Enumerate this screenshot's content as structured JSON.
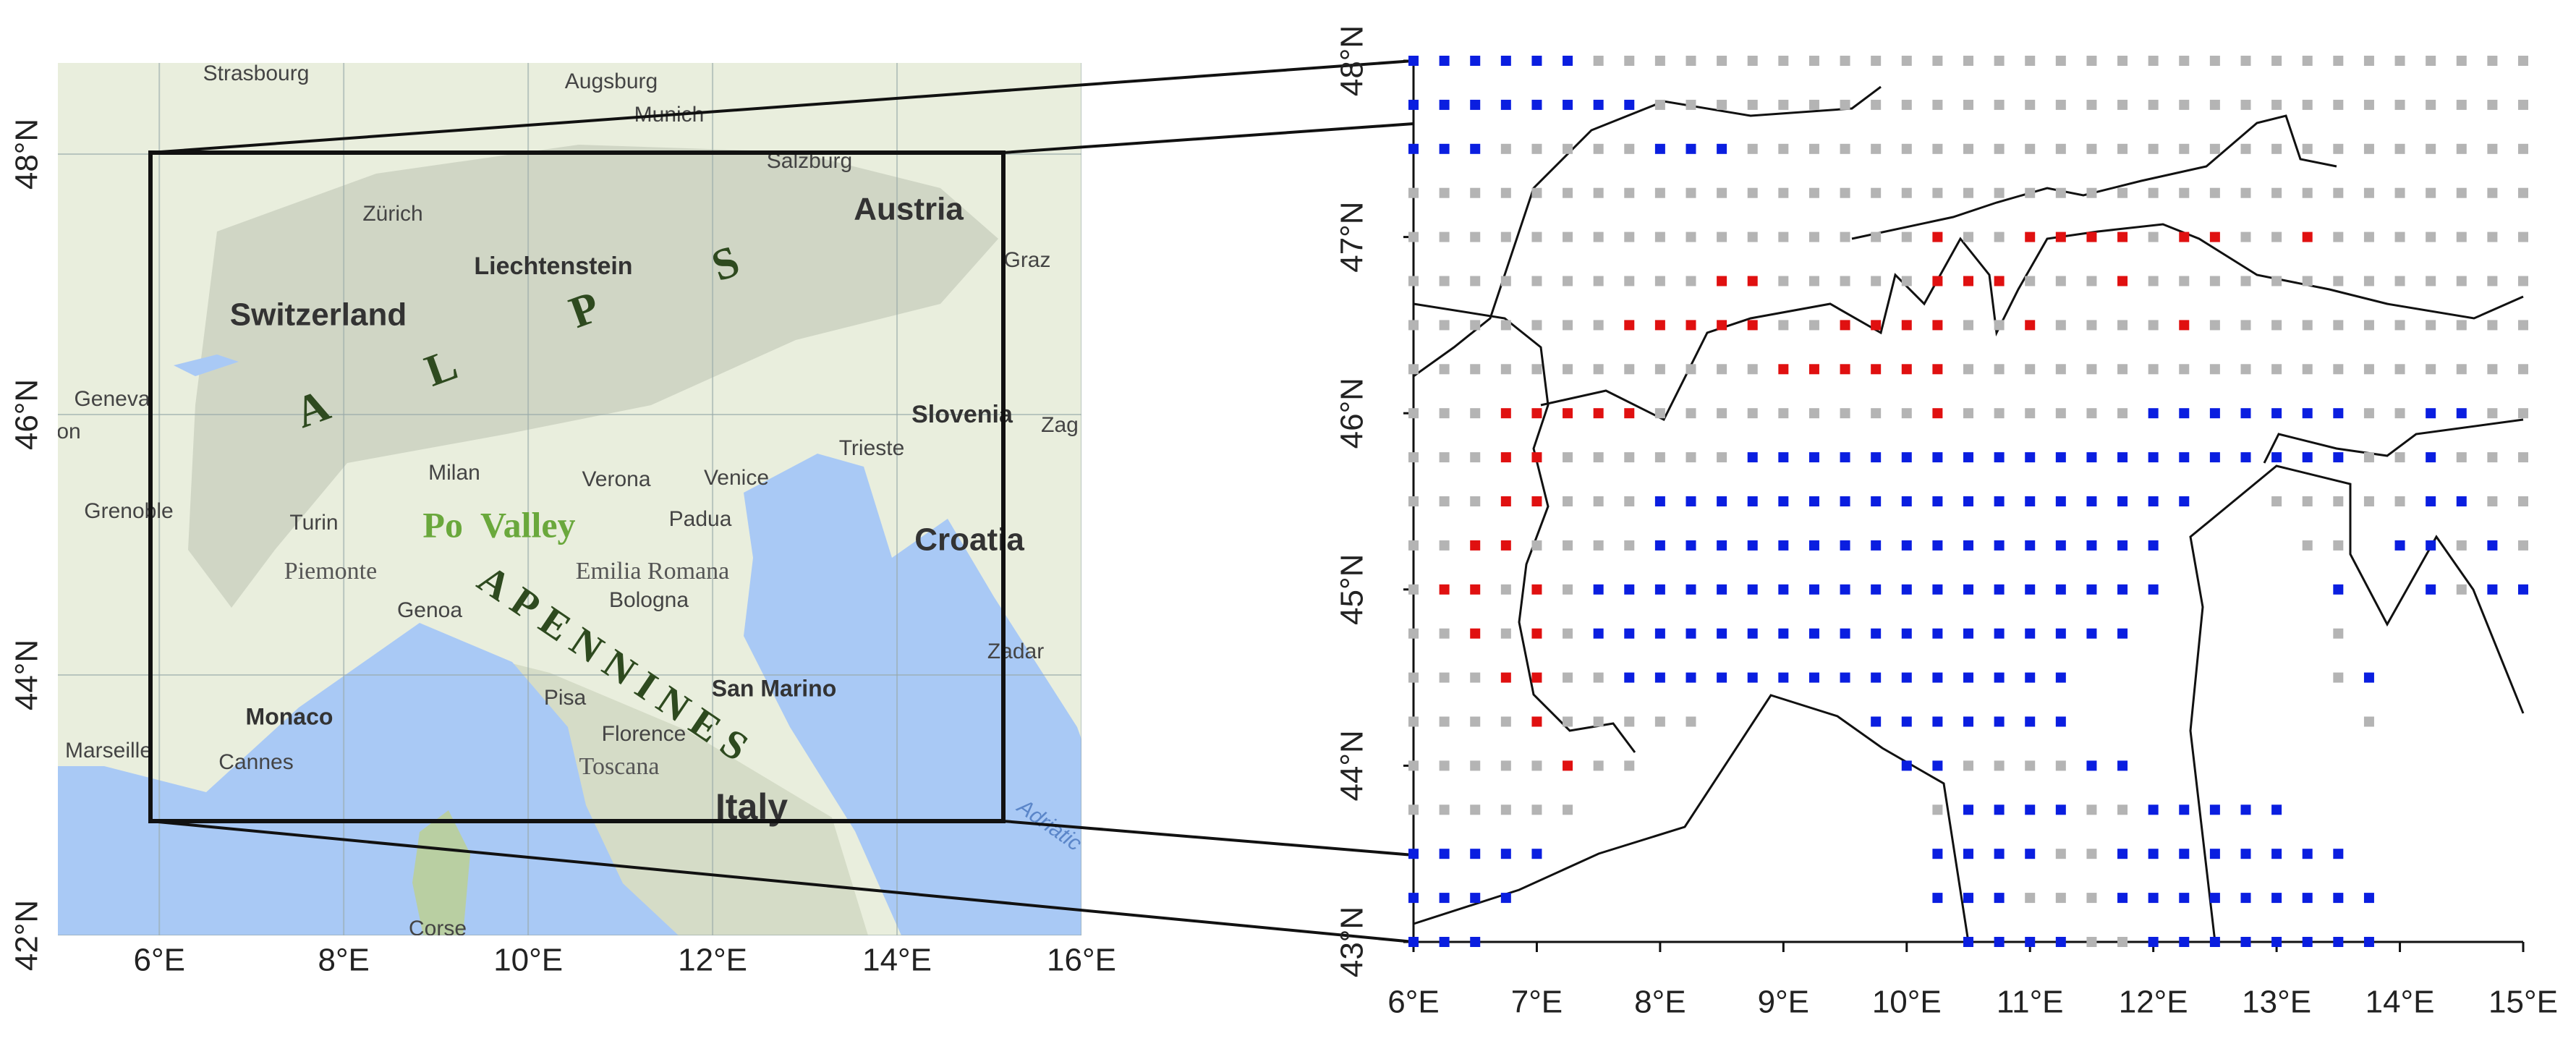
{
  "left_map": {
    "labels": [
      "Strasbourg",
      "Augsburg",
      "Munich",
      "Salzburg",
      "Zürich",
      "Austria",
      "Graz",
      "Liechtenstein",
      "Switzerland",
      "Geneva",
      "on",
      "Slovenia",
      "Zag",
      "Trieste",
      "Milan",
      "Verona",
      "Venice",
      "Padua",
      "Grenoble",
      "Turin",
      "Po  Valley",
      "Croatia",
      "Piemonte",
      "Emilia Romana",
      "Bologna",
      "Genoa",
      "San Marino",
      "Zadar",
      "Monaco",
      "Pisa",
      "Florence",
      "Cannes",
      "Marseille",
      "Toscana",
      "Italy",
      "Corse",
      "Adriatic",
      "A",
      "L",
      "P",
      "S",
      "APENNINES"
    ],
    "xlim": [
      4.9,
      16
    ],
    "ylim": [
      42,
      48.7
    ],
    "xticks": [
      {
        "value": 6,
        "label": "6°E"
      },
      {
        "value": 8,
        "label": "8°E"
      },
      {
        "value": 10,
        "label": "10°E"
      },
      {
        "value": 12,
        "label": "12°E"
      },
      {
        "value": 14,
        "label": "14°E"
      },
      {
        "value": 16,
        "label": "16°E"
      }
    ],
    "yticks": [
      {
        "value": 42,
        "label": "42°N"
      },
      {
        "value": 44,
        "label": "44°N"
      },
      {
        "value": 46,
        "label": "46°N"
      },
      {
        "value": 48,
        "label": "48°N"
      }
    ]
  },
  "right_map": {
    "xlim": [
      6,
      15
    ],
    "ylim": [
      43,
      48
    ],
    "xticks": [
      {
        "value": 6,
        "label": "6°E"
      },
      {
        "value": 7,
        "label": "7°E"
      },
      {
        "value": 8,
        "label": "8°E"
      },
      {
        "value": 9,
        "label": "9°E"
      },
      {
        "value": 10,
        "label": "10°E"
      },
      {
        "value": 11,
        "label": "11°E"
      },
      {
        "value": 12,
        "label": "12°E"
      },
      {
        "value": 13,
        "label": "13°E"
      },
      {
        "value": 14,
        "label": "14°E"
      },
      {
        "value": 15,
        "label": "15°E"
      }
    ],
    "yticks": [
      {
        "value": 43,
        "label": "43°N"
      },
      {
        "value": 44,
        "label": "44°N"
      },
      {
        "value": 45,
        "label": "45°N"
      },
      {
        "value": 46,
        "label": "46°N"
      },
      {
        "value": 47,
        "label": "47°N"
      },
      {
        "value": 48,
        "label": "48°N"
      }
    ],
    "grid_points": {
      "lon0": 6,
      "lat0": 48,
      "step": 0.25,
      "colors": {
        "b": "#0a1ee0",
        "r": "#e01010",
        "g": "#b4b4b4"
      },
      "rows": [
        "bbbbbbggggggggggggggggggggggggggggggg",
        "bbbbbbbbggggggggggggggggggggggggggggg",
        "bbbgggggbbbgggggggggggggggggggggggggg",
        "ggggggggggggggggggggggggggggggggggggg",
        "gggggggggggggggggrggrrrrgrrggrggggggg",
        "ggggggggggrrgggggrrrgggrggggggggggggg",
        "gggggggrrrrrggrrrrggrggggrggggggggggg",
        "ggggggggggggrrrrrrggggggggggggggggggg",
        "gggrrrrrgggggggggrggggggbbbbbbbggbbgg",
        "gggrrggggggbbbbbbbbbbbbbbbbbbbbggbggg",
        "gggrrgggbbbbbbbbbbbbbbbbbb..gggggbbgg",
        "ggrrggggbbbbbbbbbbbbbbbbb....gg.bbgbg",
        "grrgrgbbbbbbbbbbbbbbbbbbb.....b..bgbb",
        "ggrgrgbbbbbbbbbbbbbbbbbb......g......",
        "gggrrggbbbbbbbbbbbbbbb........gb.....",
        "ggggrggggg.....bbbbbbb.........g.....",
        "gggggrgg........bbggggbb.............",
        "gggggg...........gbbbbggbbbbb........",
        "bbbbb............bbbbggbbbbbbbb......",
        "bbbb.............bbbgggbbbbbbbbb.....",
        "bbb...............bbbbggbbbbbbbb....."
      ]
    }
  }
}
